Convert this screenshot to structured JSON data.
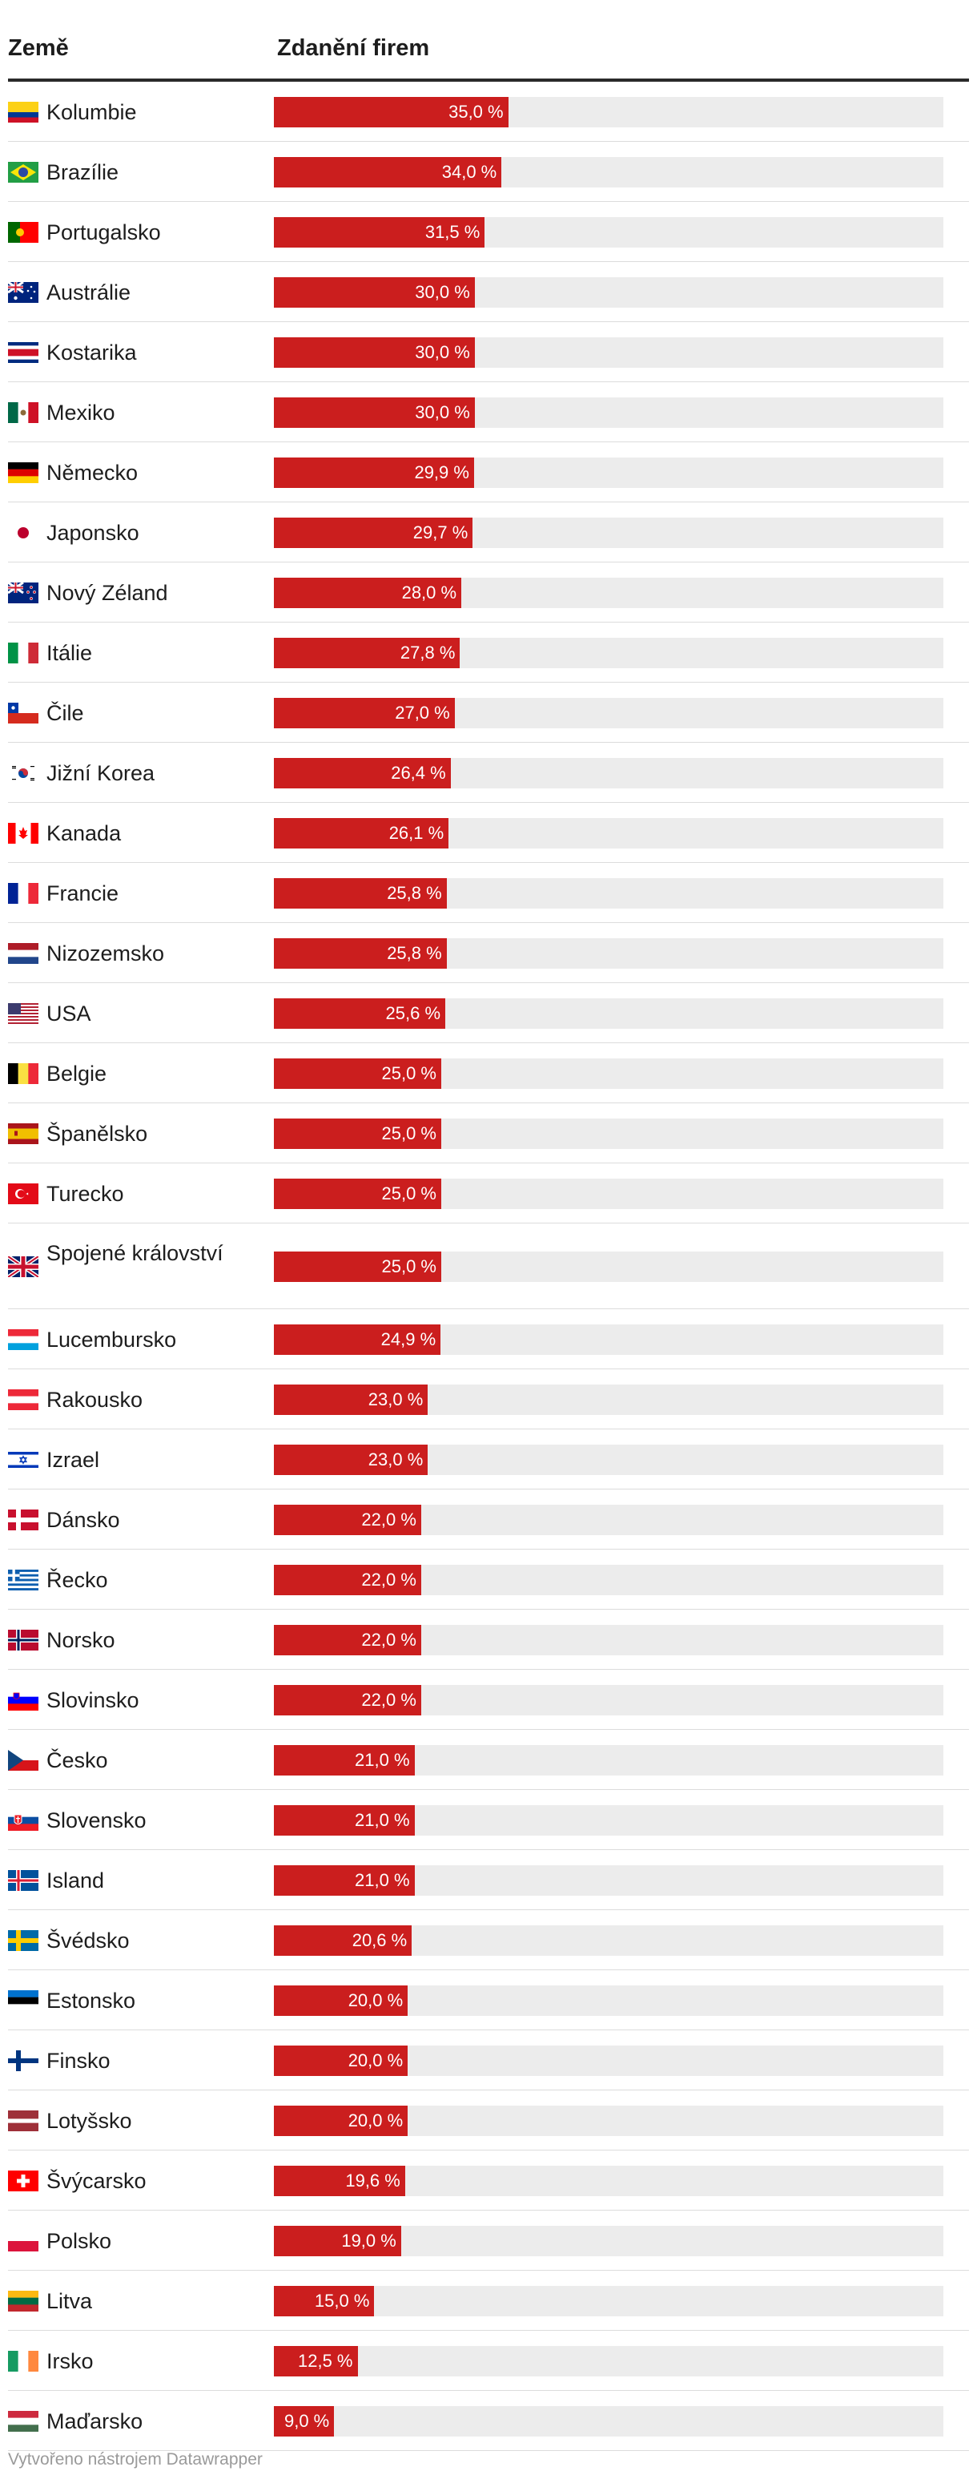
{
  "header": {
    "country": "Země",
    "value": "Zdanění firem"
  },
  "footer": "Vytvořeno nástrojem Datawrapper",
  "colors": {
    "bar": "#cb1e1e",
    "track": "#ececec",
    "rule": "#2a2a2a"
  },
  "chart_data": {
    "type": "bar",
    "orientation": "horizontal",
    "title": "Zdanění firem",
    "xlim": [
      0,
      100
    ],
    "unit": "%",
    "categories": [
      "Kolumbie",
      "Brazílie",
      "Portugalsko",
      "Austrálie",
      "Kostarika",
      "Mexiko",
      "Německo",
      "Japonsko",
      "Nový Zéland",
      "Itálie",
      "Čile",
      "Jižní Korea",
      "Kanada",
      "Francie",
      "Nizozemsko",
      "USA",
      "Belgie",
      "Španělsko",
      "Turecko",
      "Spojené království",
      "Lucembursko",
      "Rakousko",
      "Izrael",
      "Dánsko",
      "Řecko",
      "Norsko",
      "Slovinsko",
      "Česko",
      "Slovensko",
      "Island",
      "Švédsko",
      "Estonsko",
      "Finsko",
      "Lotyšsko",
      "Švýcarsko",
      "Polsko",
      "Litva",
      "Irsko",
      "Maďarsko"
    ],
    "values": [
      35.0,
      34.0,
      31.5,
      30.0,
      30.0,
      30.0,
      29.9,
      29.7,
      28.0,
      27.8,
      27.0,
      26.4,
      26.1,
      25.8,
      25.8,
      25.6,
      25.0,
      25.0,
      25.0,
      25.0,
      24.9,
      23.0,
      23.0,
      22.0,
      22.0,
      22.0,
      22.0,
      21.0,
      21.0,
      21.0,
      20.6,
      20.0,
      20.0,
      20.0,
      19.6,
      19.0,
      15.0,
      12.5,
      9.0
    ],
    "labels": [
      "35,0 %",
      "34,0 %",
      "31,5 %",
      "30,0 %",
      "30,0 %",
      "30,0 %",
      "29,9 %",
      "29,7 %",
      "28,0 %",
      "27,8 %",
      "27,0 %",
      "26,4 %",
      "26,1 %",
      "25,8 %",
      "25,8 %",
      "25,6 %",
      "25,0 %",
      "25,0 %",
      "25,0 %",
      "25,0 %",
      "24,9 %",
      "23,0 %",
      "23,0 %",
      "22,0 %",
      "22,0 %",
      "22,0 %",
      "22,0 %",
      "21,0 %",
      "21,0 %",
      "21,0 %",
      "20,6 %",
      "20,0 %",
      "20,0 %",
      "20,0 %",
      "19,6 %",
      "19,0 %",
      "15,0 %",
      "12,5 %",
      "9,0 %"
    ],
    "flag_icons": [
      "colombia-flag-icon",
      "brazil-flag-icon",
      "portugal-flag-icon",
      "australia-flag-icon",
      "costa-rica-flag-icon",
      "mexico-flag-icon",
      "germany-flag-icon",
      "japan-flag-icon",
      "new-zealand-flag-icon",
      "italy-flag-icon",
      "chile-flag-icon",
      "south-korea-flag-icon",
      "canada-flag-icon",
      "france-flag-icon",
      "netherlands-flag-icon",
      "usa-flag-icon",
      "belgium-flag-icon",
      "spain-flag-icon",
      "turkey-flag-icon",
      "united-kingdom-flag-icon",
      "luxembourg-flag-icon",
      "austria-flag-icon",
      "israel-flag-icon",
      "denmark-flag-icon",
      "greece-flag-icon",
      "norway-flag-icon",
      "slovenia-flag-icon",
      "czechia-flag-icon",
      "slovakia-flag-icon",
      "iceland-flag-icon",
      "sweden-flag-icon",
      "estonia-flag-icon",
      "finland-flag-icon",
      "latvia-flag-icon",
      "switzerland-flag-icon",
      "poland-flag-icon",
      "lithuania-flag-icon",
      "ireland-flag-icon",
      "hungary-flag-icon"
    ]
  }
}
